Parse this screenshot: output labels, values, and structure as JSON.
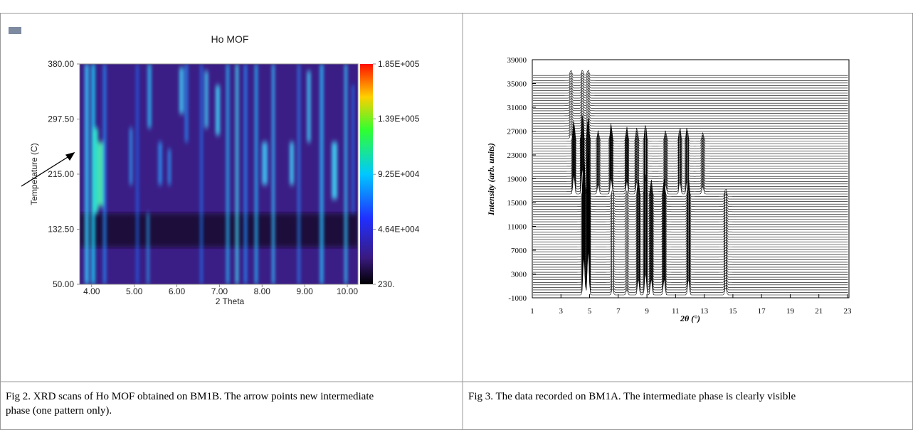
{
  "figures": [
    {
      "title": "Ho MOF",
      "x_label": "2 Theta",
      "y_label": "Temperature (C)",
      "xlim": [
        3.72,
        10.25
      ],
      "ylim": [
        50,
        380
      ],
      "xticks": [
        {
          "value": 4,
          "label": "4.00"
        },
        {
          "value": 5,
          "label": "5.00"
        },
        {
          "value": 6,
          "label": "6.00"
        },
        {
          "value": 7,
          "label": "7.00"
        },
        {
          "value": 8,
          "label": "8.00"
        },
        {
          "value": 9,
          "label": "9.00"
        },
        {
          "value": 10,
          "label": "10.00"
        }
      ],
      "yticks": [
        {
          "value": 50,
          "label": "50.00"
        },
        {
          "value": 132.5,
          "label": "132.50"
        },
        {
          "value": 215,
          "label": "215.00"
        },
        {
          "value": 297.5,
          "label": "297.50"
        },
        {
          "value": 380,
          "label": "380.00"
        }
      ],
      "colorbar_lim": [
        230,
        185000
      ],
      "colorbar_ticks": [
        {
          "value": 230,
          "label": "230."
        },
        {
          "value": 46400,
          "label": "4.64E+004"
        },
        {
          "value": 92500,
          "label": "9.25E+004"
        },
        {
          "value": 139000,
          "label": "1.39E+005"
        },
        {
          "value": 185000,
          "label": "1.85E+005"
        }
      ]
    },
    {
      "x_label": "2θ (°)",
      "y_label": "Intensity (arb. units)",
      "xlim": [
        1,
        23.1
      ],
      "ylim": [
        -1000,
        39000
      ],
      "xticks": [
        1,
        3,
        5,
        7,
        9,
        11,
        13,
        15,
        17,
        19,
        21,
        23
      ],
      "yticks": [
        -1000,
        3000,
        7000,
        11000,
        15000,
        19000,
        23000,
        27000,
        31000,
        35000,
        39000
      ]
    }
  ],
  "captions": [
    "Fig 2. XRD scans of Ho MOF obtained on BM1B. The arrow points new intermediate phase (one pattern only).",
    "Fig 3. The data recorded on BM1A. The intermediate phase is clearly visible"
  ]
}
